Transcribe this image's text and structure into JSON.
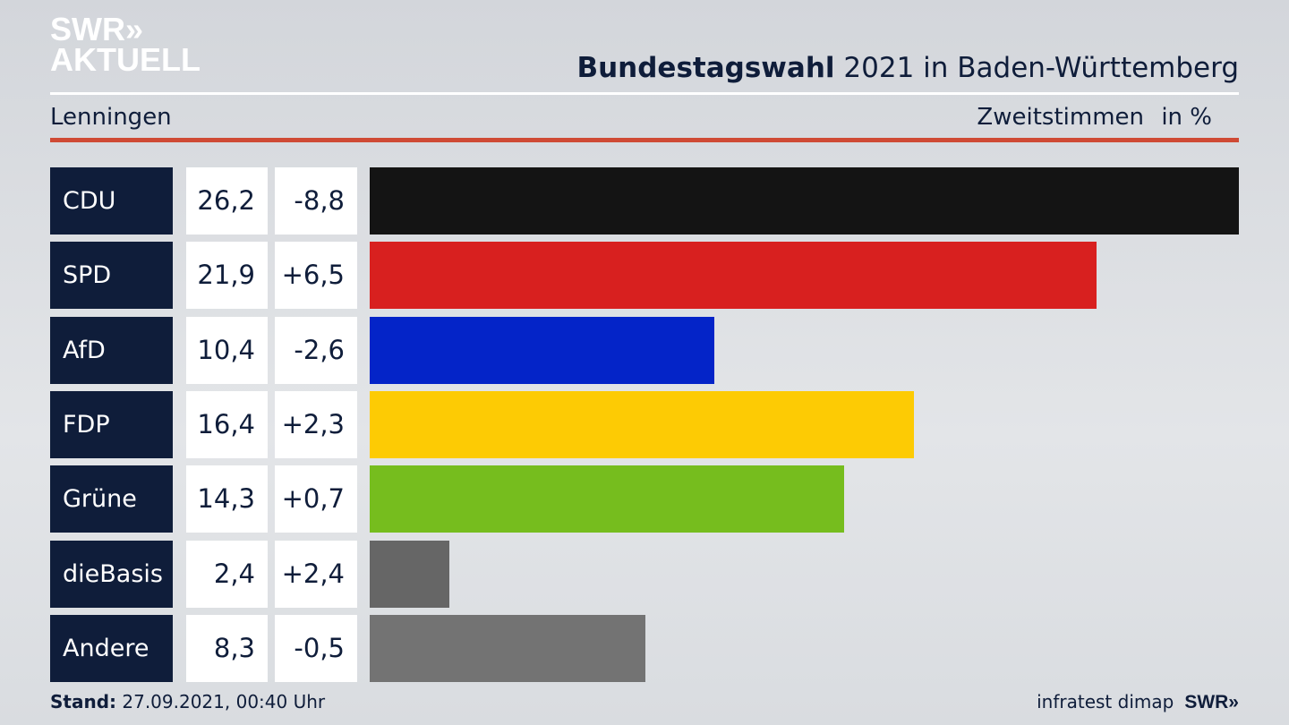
{
  "logo": {
    "line1": "SWR»",
    "line2": "AKTUELL"
  },
  "header": {
    "title_bold": "Bundestagswahl",
    "title_rest": " 2021 in Baden-Württemberg",
    "region": "Lenningen",
    "measure": "Zweitstimmen",
    "unit": "in %"
  },
  "chart_data": {
    "type": "bar",
    "orientation": "horizontal",
    "title": "Bundestagswahl 2021 in Baden-Württemberg",
    "xlabel": "Zweitstimmen in %",
    "categories": [
      "CDU",
      "SPD",
      "AfD",
      "FDP",
      "Grüne",
      "dieBasis",
      "Andere"
    ],
    "values": [
      26.2,
      21.9,
      10.4,
      16.4,
      14.3,
      2.4,
      8.3
    ],
    "value_labels": [
      "26,2",
      "21,9",
      "10,4",
      "16,4",
      "14,3",
      "2,4",
      "8,3"
    ],
    "diff_labels": [
      "-8,8",
      "+6,5",
      "-2,6",
      "+2,3",
      "+0,7",
      "+2,4",
      "-0,5"
    ],
    "diffs": [
      -8.8,
      6.5,
      -2.6,
      2.3,
      0.7,
      2.4,
      -0.5
    ],
    "colors": [
      "#141414",
      "#d8201f",
      "#0424c8",
      "#fdcb04",
      "#76bd1e",
      "#666666",
      "#737373"
    ],
    "xlim": [
      0,
      26.2
    ]
  },
  "footer": {
    "stand_label": "Stand:",
    "stand_value": " 27.09.2021, 00:40 Uhr",
    "source": "infratest dimap",
    "brand": "SWR»"
  }
}
